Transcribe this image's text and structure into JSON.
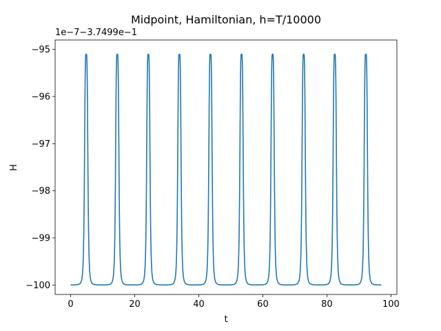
{
  "chart_data": {
    "type": "line",
    "title": "Midpoint, Hamiltonian, h=T/10000",
    "xlabel": "t",
    "ylabel": "H",
    "offset_label": "1e−7−3.7499e−1",
    "xlim": [
      -4.85,
      101.85
    ],
    "ylim": [
      -100.2,
      -94.8
    ],
    "xticks": [
      0,
      20,
      40,
      60,
      80,
      100
    ],
    "yticks": [
      -100,
      -99,
      -98,
      -97,
      -96,
      -95
    ],
    "x_tick_labels": [
      "0",
      "20",
      "40",
      "60",
      "80",
      "100"
    ],
    "y_tick_labels": [
      "−100",
      "−99",
      "−98",
      "−97",
      "−96",
      "−95"
    ],
    "grid": false,
    "legend": "none",
    "series": [
      {
        "color": "#1f77b4",
        "t_range": [
          0,
          97
        ],
        "baseline": -100,
        "peak": -95.1,
        "peak_times": [
          4.85,
          14.55,
          24.25,
          33.95,
          43.65,
          53.35,
          63.05,
          72.75,
          82.45,
          92.15
        ],
        "peak_width": 0.55
      }
    ]
  }
}
